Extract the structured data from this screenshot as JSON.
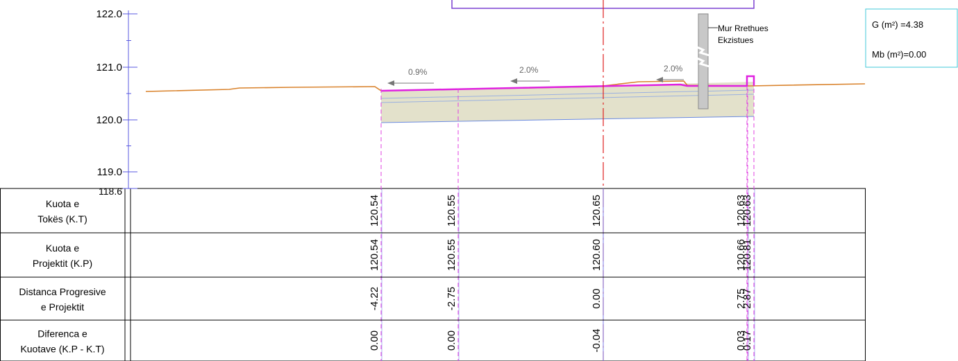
{
  "elevation_axis": {
    "ticks": [
      "122.0",
      "121.0",
      "120.0",
      "119.0"
    ],
    "datum": "118.6"
  },
  "annotations": {
    "slopes": [
      "0.9%",
      "2.0%",
      "2.0%"
    ],
    "wall": [
      "Mur Rrethues",
      "Ekzistues"
    ]
  },
  "areas": [
    "G (m²)  =4.38",
    "Mb (m²)=0.00"
  ],
  "table": {
    "rows": [
      {
        "label": [
          "Kuota e",
          "Tokës (K.T)"
        ],
        "values": [
          "120.54",
          "120.55",
          "120.65",
          "120.63",
          "120.63"
        ]
      },
      {
        "label": [
          "Kuota e",
          "Projektit (K.P)"
        ],
        "values": [
          "120.54",
          "120.55",
          "120.60",
          "120.66",
          "120.81"
        ]
      },
      {
        "label": [
          "Distanca Progresive",
          "e Projektit"
        ],
        "values": [
          "-4.22",
          "-2.75",
          "0.00",
          "2.75",
          "2.87"
        ]
      },
      {
        "label": [
          "Diferenca e",
          "Kuotave (K.P - K.T)"
        ],
        "values": [
          "0.00",
          "0.00",
          "-0.04",
          "0.03",
          "0.17"
        ]
      }
    ]
  }
}
